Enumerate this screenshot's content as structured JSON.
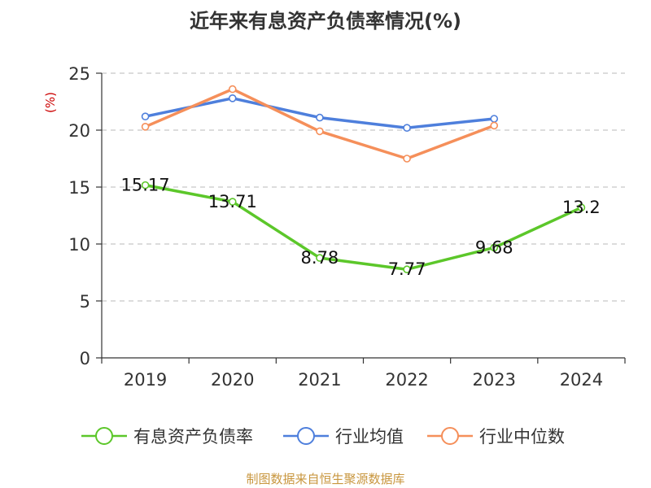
{
  "chart_data": {
    "type": "line",
    "title": "近年来有息资产负债率情况(%)",
    "ylabel": "(%)",
    "xlabel": "",
    "ylim": [
      0,
      25
    ],
    "yticks": [
      0,
      5,
      10,
      15,
      20,
      25
    ],
    "categories": [
      "2019",
      "2020",
      "2021",
      "2022",
      "2023",
      "2024"
    ],
    "grid": true,
    "legend_position": "bottom",
    "series": [
      {
        "name": "有息资产负债率",
        "color": "#5cc72a",
        "values": [
          15.17,
          13.71,
          8.78,
          7.77,
          9.68,
          13.2
        ],
        "labels": [
          "15.17",
          "13.71",
          "8.78",
          "7.77",
          "9.68",
          "13.2"
        ]
      },
      {
        "name": "行业均值",
        "color": "#4e7fdc",
        "values": [
          21.2,
          22.8,
          21.1,
          20.2,
          21.0,
          null
        ]
      },
      {
        "name": "行业中位数",
        "color": "#f58f5a",
        "values": [
          20.3,
          23.6,
          19.9,
          17.5,
          20.4,
          null
        ]
      }
    ]
  },
  "source": "制图数据来自恒生聚源数据库"
}
